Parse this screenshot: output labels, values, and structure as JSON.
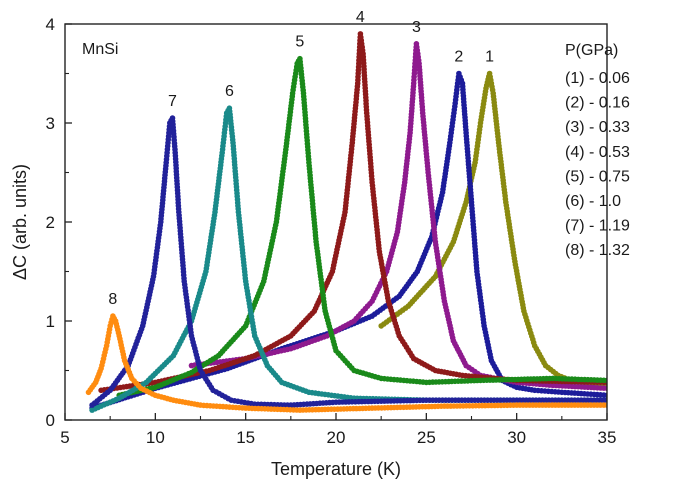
{
  "chart_data": {
    "type": "scatter",
    "xlabel": "Temperature (K)",
    "ylabel": "ΔC (arb. units)",
    "xlim": [
      5,
      35
    ],
    "ylim": [
      0,
      4
    ],
    "xticks": [
      5,
      10,
      15,
      20,
      25,
      30,
      35
    ],
    "yticks": [
      0,
      1,
      2,
      3,
      4
    ],
    "annotation": "MnSi",
    "legend_title": "P(GPa)",
    "legend_entries": [
      "(1) - 0.06",
      "(2) - 0.16",
      "(3) - 0.33",
      "(4) - 0.53",
      "(5) - 0.75",
      "(6) - 1.0",
      "(7) - 1.19",
      "(8) - 1.32"
    ],
    "grid": false,
    "series": [
      {
        "label": "1",
        "color": "#8a8a10",
        "x": [
          22.5,
          24,
          25.5,
          26.5,
          27.2,
          27.7,
          28.0,
          28.3,
          28.5,
          28.7,
          29.0,
          29.4,
          29.9,
          30.4,
          31.0,
          31.6,
          32.3,
          33.0,
          34.0,
          35.0
        ],
        "y": [
          0.95,
          1.15,
          1.45,
          1.8,
          2.2,
          2.6,
          3.0,
          3.35,
          3.5,
          3.3,
          2.8,
          2.2,
          1.6,
          1.1,
          0.75,
          0.55,
          0.45,
          0.4,
          0.36,
          0.35
        ]
      },
      {
        "label": "2",
        "color": "#1c1c9a",
        "x": [
          6.5,
          10,
          14,
          17,
          20,
          22,
          23.5,
          24.5,
          25.3,
          25.9,
          26.3,
          26.6,
          26.8,
          27.0,
          27.2,
          27.5,
          27.8,
          28.2,
          28.6,
          29.2,
          30,
          31,
          32.5,
          35
        ],
        "y": [
          0.12,
          0.32,
          0.52,
          0.72,
          0.9,
          1.05,
          1.25,
          1.5,
          1.85,
          2.3,
          2.8,
          3.2,
          3.5,
          3.4,
          2.9,
          2.2,
          1.5,
          0.95,
          0.6,
          0.4,
          0.33,
          0.3,
          0.28,
          0.25
        ]
      },
      {
        "label": "3",
        "color": "#8e1a8e",
        "x": [
          12,
          15,
          17.5,
          19.5,
          21,
          22,
          22.8,
          23.4,
          23.8,
          24.1,
          24.3,
          24.45,
          24.6,
          24.8,
          25.1,
          25.5,
          26,
          26.5,
          27.2,
          28,
          30,
          32,
          35
        ],
        "y": [
          0.55,
          0.62,
          0.72,
          0.85,
          1.0,
          1.2,
          1.5,
          1.9,
          2.4,
          2.9,
          3.4,
          3.8,
          3.6,
          3.1,
          2.5,
          1.8,
          1.2,
          0.8,
          0.55,
          0.45,
          0.38,
          0.35,
          0.32
        ]
      },
      {
        "label": "4",
        "color": "#8e1a1a",
        "x": [
          7,
          10,
          13,
          15.5,
          17.5,
          18.8,
          19.8,
          20.5,
          20.9,
          21.2,
          21.35,
          21.5,
          21.7,
          22.0,
          22.4,
          22.9,
          23.5,
          24.3,
          25.5,
          27,
          30,
          35
        ],
        "y": [
          0.3,
          0.38,
          0.5,
          0.65,
          0.85,
          1.1,
          1.5,
          2.1,
          2.8,
          3.4,
          3.9,
          3.7,
          3.1,
          2.4,
          1.7,
          1.2,
          0.85,
          0.62,
          0.5,
          0.45,
          0.4,
          0.38
        ]
      },
      {
        "label": "5",
        "color": "#1a8a1a",
        "x": [
          8,
          10,
          12,
          13.5,
          15,
          16,
          16.7,
          17.2,
          17.6,
          17.85,
          18.0,
          18.2,
          18.5,
          18.9,
          19.4,
          20,
          21,
          22.5,
          25,
          28,
          32,
          35
        ],
        "y": [
          0.25,
          0.33,
          0.48,
          0.65,
          0.95,
          1.4,
          2.0,
          2.7,
          3.3,
          3.6,
          3.65,
          3.3,
          2.6,
          1.8,
          1.1,
          0.7,
          0.5,
          0.42,
          0.38,
          0.4,
          0.42,
          0.4
        ]
      },
      {
        "label": "6",
        "color": "#1a8a8a",
        "x": [
          6.5,
          8,
          9.5,
          11,
          12,
          12.8,
          13.3,
          13.7,
          13.95,
          14.1,
          14.3,
          14.6,
          15.0,
          15.5,
          16.2,
          17,
          18.5,
          21,
          25,
          30,
          35
        ],
        "y": [
          0.1,
          0.22,
          0.38,
          0.65,
          1.0,
          1.5,
          2.1,
          2.7,
          3.1,
          3.15,
          2.8,
          2.1,
          1.4,
          0.85,
          0.55,
          0.38,
          0.28,
          0.22,
          0.2,
          0.2,
          0.2
        ]
      },
      {
        "label": "7",
        "color": "#22229a",
        "x": [
          6.5,
          7.5,
          8.5,
          9.3,
          9.9,
          10.3,
          10.6,
          10.8,
          10.95,
          11.1,
          11.3,
          11.6,
          12.0,
          12.5,
          13.2,
          14.2,
          15.5,
          17.5,
          20,
          25,
          30,
          35
        ],
        "y": [
          0.15,
          0.3,
          0.55,
          0.95,
          1.45,
          2.0,
          2.6,
          3.0,
          3.05,
          2.7,
          2.1,
          1.4,
          0.85,
          0.5,
          0.3,
          0.2,
          0.16,
          0.15,
          0.18,
          0.2,
          0.2,
          0.2
        ]
      },
      {
        "label": "8",
        "color": "#ff8c10",
        "x": [
          6.3,
          6.7,
          7.0,
          7.3,
          7.5,
          7.65,
          7.8,
          8.0,
          8.3,
          8.7,
          9.2,
          10,
          11,
          12.5,
          15,
          18,
          22,
          26,
          30,
          35
        ],
        "y": [
          0.28,
          0.38,
          0.52,
          0.75,
          0.95,
          1.05,
          1.0,
          0.85,
          0.6,
          0.42,
          0.32,
          0.25,
          0.2,
          0.15,
          0.12,
          0.1,
          0.12,
          0.14,
          0.15,
          0.15
        ]
      }
    ]
  }
}
